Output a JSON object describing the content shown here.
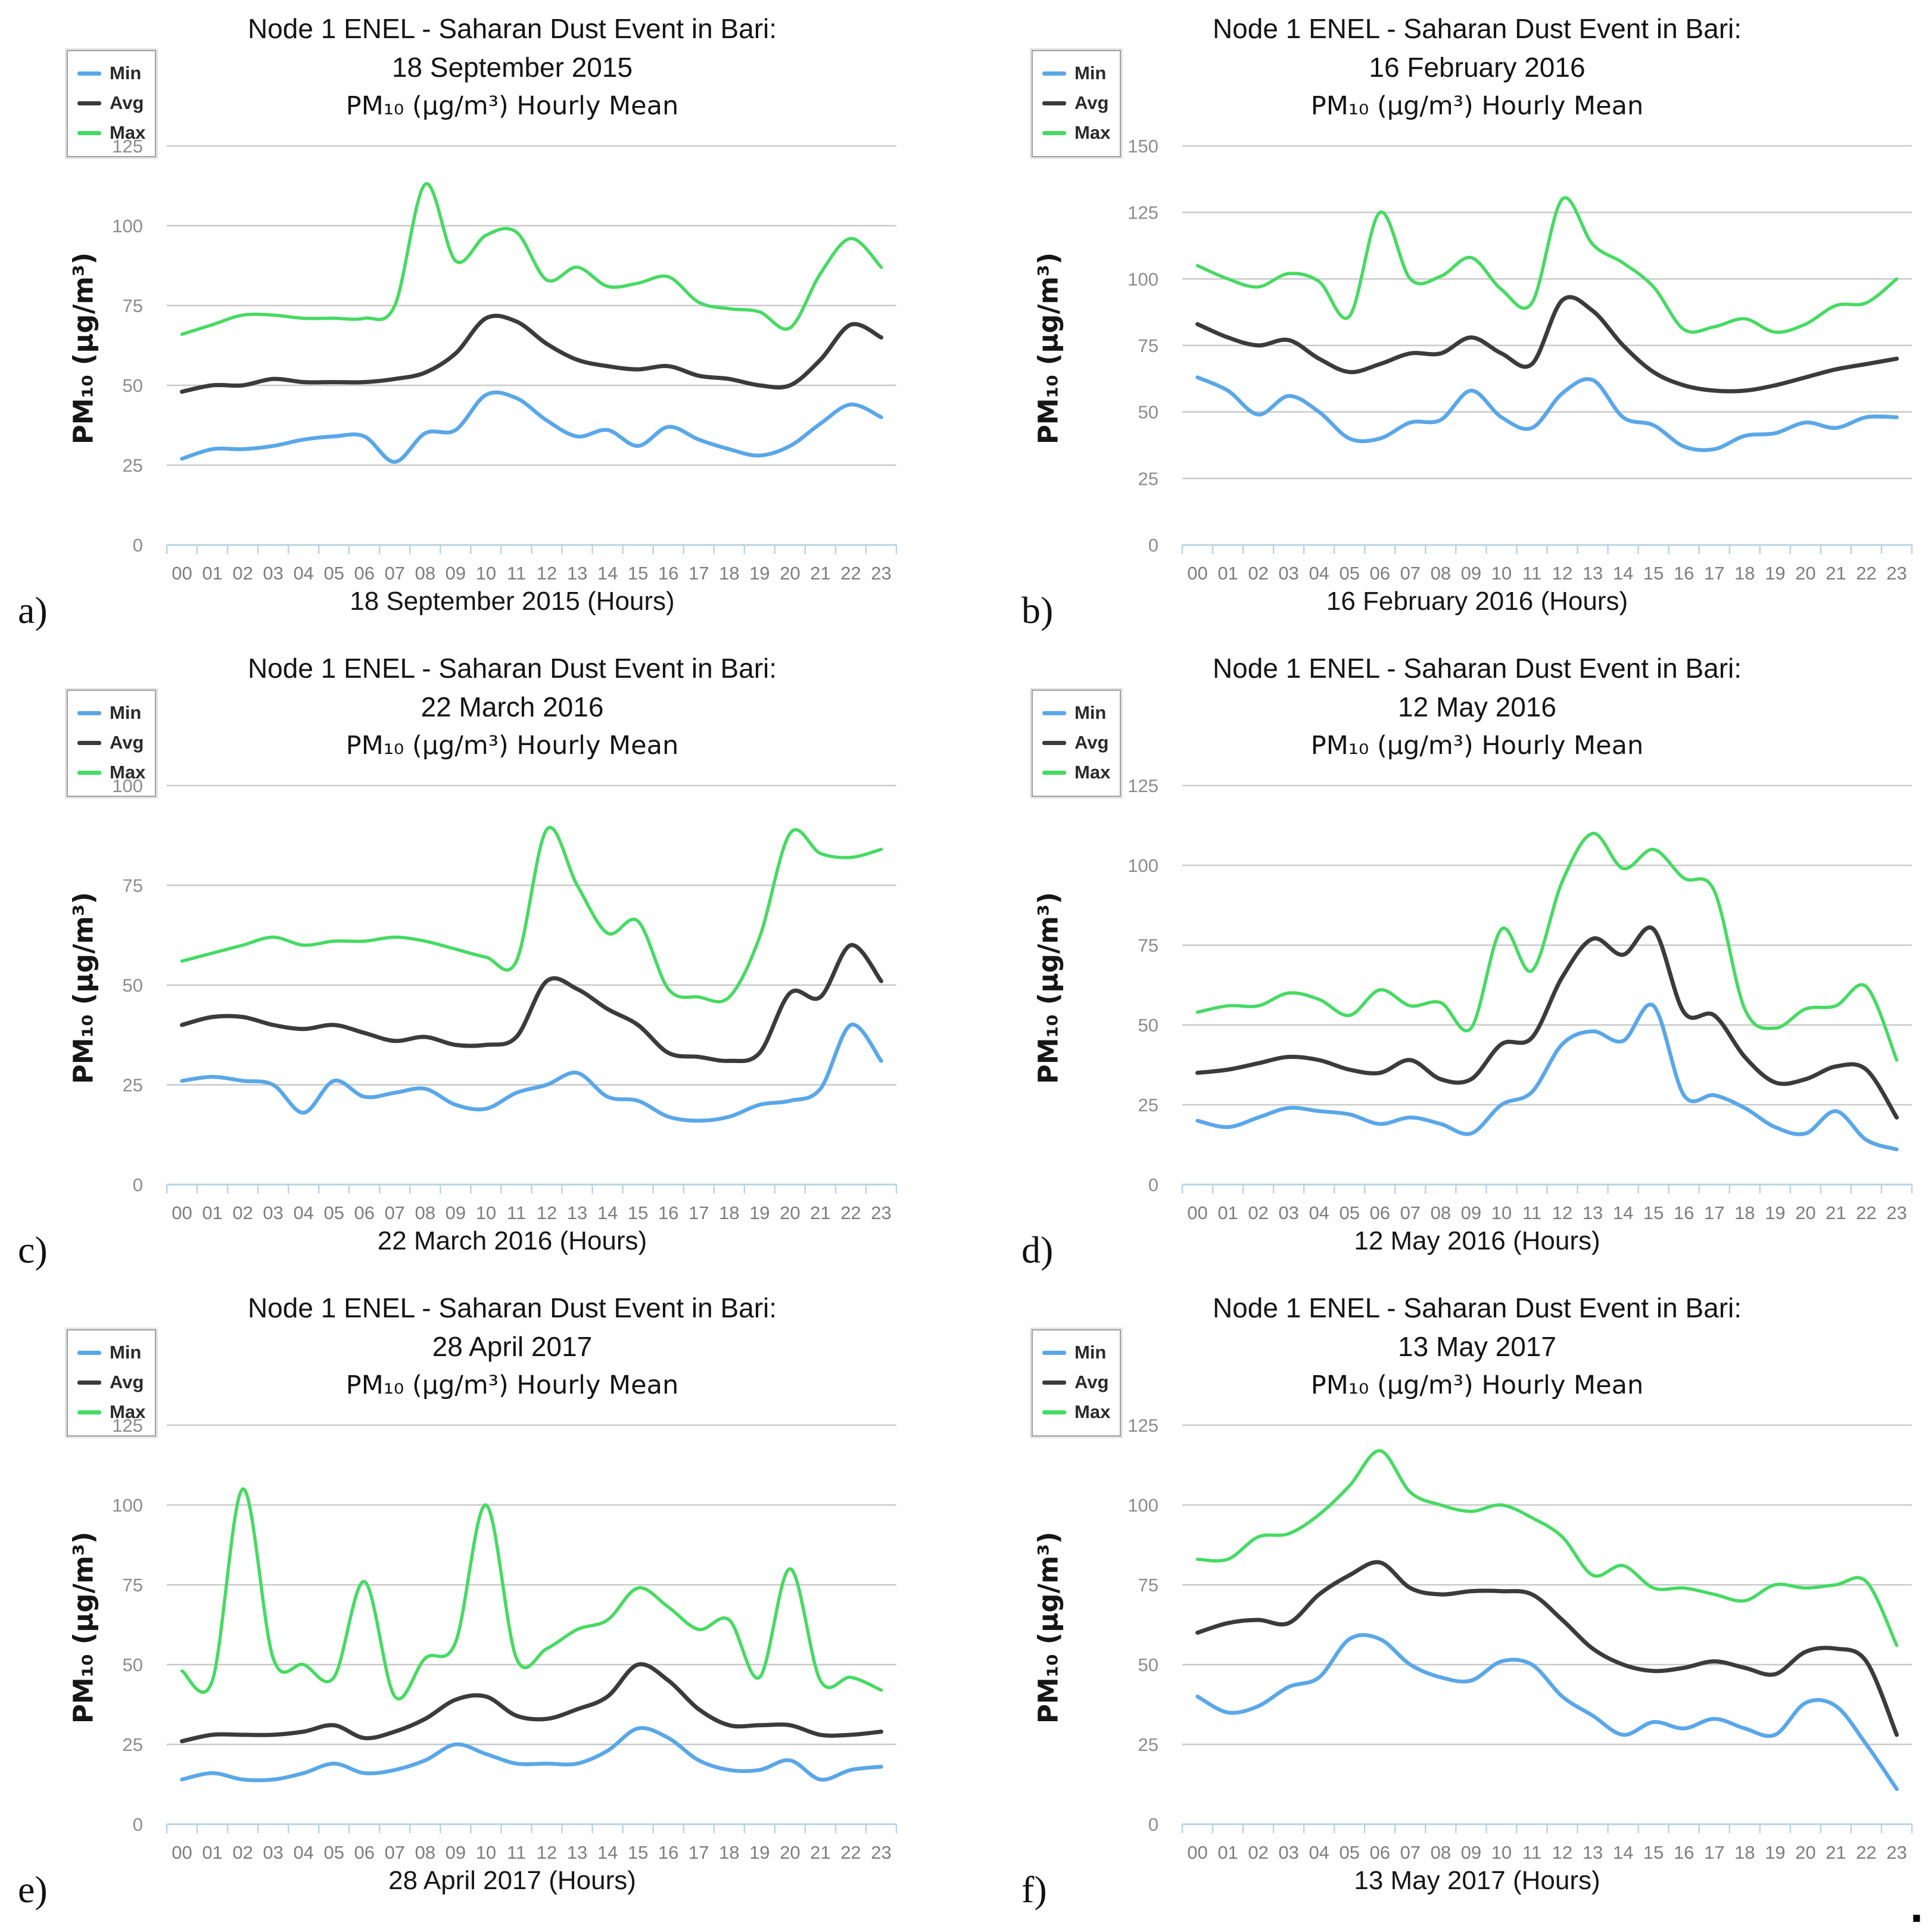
{
  "palette": {
    "min_line": "#5aa7e8",
    "avg_line": "#3b3b3b",
    "max_line": "#46da63",
    "gridline": "#c9c9c9",
    "axis_line": "#b9d3e2",
    "axis_tick_label": "#8c8c8c",
    "title_text": "#141414"
  },
  "footer": {
    "trailing_period": "."
  },
  "chart_data": [
    {
      "type": "line",
      "panel_label": "a)",
      "title": {
        "line1": "Node 1 ENEL - Saharan Dust Event in Bari:",
        "line2": "18 September 2015",
        "line3": "PM₁₀ (µg/m³) Hourly Mean"
      },
      "ylabel": "PM₁₀ (µg/m³)",
      "xlabel": "18 September 2015 (Hours)",
      "ylim": [
        0,
        125
      ],
      "yticks": [
        0,
        25,
        50,
        75,
        100,
        125
      ],
      "grid": true,
      "legend_position": "top-left",
      "x_tick_labels": [
        "00",
        "01",
        "02",
        "03",
        "04",
        "05",
        "06",
        "07",
        "08",
        "09",
        "10",
        "11",
        "12",
        "13",
        "14",
        "15",
        "16",
        "17",
        "18",
        "19",
        "20",
        "21",
        "22",
        "23"
      ],
      "series": [
        {
          "name": "Min",
          "color": "#5aa7e8",
          "values": [
            27,
            30,
            30,
            31,
            33,
            34,
            34,
            26,
            35,
            36,
            47,
            46,
            39,
            34,
            36,
            31,
            37,
            33,
            30,
            28,
            31,
            38,
            44,
            40
          ]
        },
        {
          "name": "Avg",
          "color": "#3b3b3b",
          "values": [
            48,
            50,
            50,
            52,
            51,
            51,
            51,
            52,
            54,
            60,
            71,
            70,
            63,
            58,
            56,
            55,
            56,
            53,
            52,
            50,
            50,
            58,
            69,
            65
          ]
        },
        {
          "name": "Max",
          "color": "#46da63",
          "values": [
            66,
            69,
            72,
            72,
            71,
            71,
            71,
            75,
            113,
            89,
            97,
            98,
            83,
            87,
            81,
            82,
            84,
            76,
            74,
            73,
            68,
            85,
            96,
            87
          ]
        }
      ]
    },
    {
      "type": "line",
      "panel_label": "b)",
      "title": {
        "line1": "Node 1 ENEL - Saharan Dust Event in Bari:",
        "line2": "16 February 2016",
        "line3": "PM₁₀ (µg/m³) Hourly Mean"
      },
      "ylabel": "PM₁₀ (µg/m³)",
      "xlabel": "16 February 2016 (Hours)",
      "ylim": [
        0,
        150
      ],
      "yticks": [
        0,
        25,
        50,
        75,
        100,
        125,
        150
      ],
      "grid": true,
      "legend_position": "top-left",
      "x_tick_labels": [
        "00",
        "01",
        "02",
        "03",
        "04",
        "05",
        "06",
        "07",
        "08",
        "09",
        "10",
        "11",
        "12",
        "13",
        "14",
        "15",
        "16",
        "17",
        "18",
        "19",
        "20",
        "21",
        "22",
        "23"
      ],
      "series": [
        {
          "name": "Min",
          "color": "#5aa7e8",
          "values": [
            63,
            58,
            49,
            56,
            50,
            40,
            40,
            46,
            47,
            58,
            48,
            44,
            57,
            62,
            48,
            45,
            37,
            36,
            41,
            42,
            46,
            44,
            48,
            48
          ]
        },
        {
          "name": "Avg",
          "color": "#3b3b3b",
          "values": [
            83,
            78,
            75,
            77,
            70,
            65,
            68,
            72,
            72,
            78,
            72,
            68,
            92,
            88,
            75,
            65,
            60,
            58,
            58,
            60,
            63,
            66,
            68,
            70
          ]
        },
        {
          "name": "Max",
          "color": "#46da63",
          "values": [
            105,
            100,
            97,
            102,
            99,
            86,
            125,
            100,
            101,
            108,
            96,
            91,
            130,
            113,
            106,
            97,
            81,
            82,
            85,
            80,
            83,
            90,
            91,
            100
          ]
        }
      ]
    },
    {
      "type": "line",
      "panel_label": "c)",
      "title": {
        "line1": "Node 1 ENEL - Saharan Dust Event in Bari:",
        "line2": "22 March 2016",
        "line3": "PM₁₀ (µg/m³) Hourly Mean"
      },
      "ylabel": "PM₁₀ (µg/m³)",
      "xlabel": "22 March 2016 (Hours)",
      "ylim": [
        0,
        100
      ],
      "yticks": [
        0,
        25,
        50,
        75,
        100
      ],
      "grid": true,
      "legend_position": "top-left",
      "x_tick_labels": [
        "00",
        "01",
        "02",
        "03",
        "04",
        "05",
        "06",
        "07",
        "08",
        "09",
        "10",
        "11",
        "12",
        "13",
        "14",
        "15",
        "16",
        "17",
        "18",
        "19",
        "20",
        "21",
        "22",
        "23"
      ],
      "series": [
        {
          "name": "Min",
          "color": "#5aa7e8",
          "values": [
            26,
            27,
            26,
            25,
            18,
            26,
            22,
            23,
            24,
            20,
            19,
            23,
            25,
            28,
            22,
            21,
            17,
            16,
            17,
            20,
            21,
            24,
            40,
            31
          ]
        },
        {
          "name": "Avg",
          "color": "#3b3b3b",
          "values": [
            40,
            42,
            42,
            40,
            39,
            40,
            38,
            36,
            37,
            35,
            35,
            37,
            51,
            49,
            44,
            40,
            33,
            32,
            31,
            33,
            48,
            47,
            60,
            51
          ]
        },
        {
          "name": "Max",
          "color": "#46da63",
          "values": [
            56,
            58,
            60,
            62,
            60,
            61,
            61,
            62,
            61,
            59,
            57,
            56,
            89,
            75,
            63,
            66,
            49,
            47,
            47,
            62,
            88,
            83,
            82,
            84
          ]
        }
      ]
    },
    {
      "type": "line",
      "panel_label": "d)",
      "title": {
        "line1": "Node 1 ENEL - Saharan Dust Event in Bari:",
        "line2": "12 May 2016",
        "line3": "PM₁₀ (µg/m³) Hourly Mean"
      },
      "ylabel": "PM₁₀ (µg/m³)",
      "xlabel": "12 May 2016 (Hours)",
      "ylim": [
        0,
        125
      ],
      "yticks": [
        0,
        25,
        50,
        75,
        100,
        125
      ],
      "grid": true,
      "legend_position": "top-left",
      "x_tick_labels": [
        "00",
        "01",
        "02",
        "03",
        "04",
        "05",
        "06",
        "07",
        "08",
        "09",
        "10",
        "11",
        "12",
        "13",
        "14",
        "15",
        "16",
        "17",
        "18",
        "19",
        "20",
        "21",
        "22",
        "23"
      ],
      "series": [
        {
          "name": "Min",
          "color": "#5aa7e8",
          "values": [
            20,
            18,
            21,
            24,
            23,
            22,
            19,
            21,
            19,
            16,
            25,
            29,
            44,
            48,
            45,
            56,
            28,
            28,
            24,
            18,
            16,
            23,
            14,
            11
          ]
        },
        {
          "name": "Avg",
          "color": "#3b3b3b",
          "values": [
            35,
            36,
            38,
            40,
            39,
            36,
            35,
            39,
            33,
            33,
            44,
            46,
            65,
            77,
            72,
            80,
            54,
            53,
            40,
            32,
            33,
            37,
            36,
            21
          ]
        },
        {
          "name": "Max",
          "color": "#46da63",
          "values": [
            54,
            56,
            56,
            60,
            58,
            53,
            61,
            56,
            57,
            49,
            80,
            67,
            95,
            110,
            99,
            105,
            96,
            92,
            55,
            49,
            55,
            56,
            62,
            39
          ]
        }
      ]
    },
    {
      "type": "line",
      "panel_label": "e)",
      "title": {
        "line1": "Node 1 ENEL - Saharan Dust Event in Bari:",
        "line2": "28 April 2017",
        "line3": "PM₁₀ (µg/m³) Hourly Mean"
      },
      "ylabel": "PM₁₀ (µg/m³)",
      "xlabel": "28 April 2017 (Hours)",
      "ylim": [
        0,
        125
      ],
      "yticks": [
        0,
        25,
        50,
        75,
        100,
        125
      ],
      "grid": true,
      "legend_position": "top-left",
      "x_tick_labels": [
        "00",
        "01",
        "02",
        "03",
        "04",
        "05",
        "06",
        "07",
        "08",
        "09",
        "10",
        "11",
        "12",
        "13",
        "14",
        "15",
        "16",
        "17",
        "18",
        "19",
        "20",
        "21",
        "22",
        "23"
      ],
      "series": [
        {
          "name": "Min",
          "color": "#5aa7e8",
          "values": [
            14,
            16,
            14,
            14,
            16,
            19,
            16,
            17,
            20,
            25,
            22,
            19,
            19,
            19,
            23,
            30,
            27,
            20,
            17,
            17,
            20,
            14,
            17,
            18
          ]
        },
        {
          "name": "Avg",
          "color": "#3b3b3b",
          "values": [
            26,
            28,
            28,
            28,
            29,
            31,
            27,
            29,
            33,
            39,
            40,
            34,
            33,
            36,
            40,
            50,
            45,
            36,
            31,
            31,
            31,
            28,
            28,
            29
          ]
        },
        {
          "name": "Max",
          "color": "#46da63",
          "values": [
            48,
            45,
            105,
            52,
            50,
            46,
            76,
            40,
            52,
            57,
            100,
            52,
            55,
            61,
            64,
            74,
            68,
            61,
            64,
            46,
            80,
            45,
            46,
            42
          ]
        }
      ]
    },
    {
      "type": "line",
      "panel_label": "f)",
      "title": {
        "line1": "Node 1 ENEL - Saharan Dust Event in Bari:",
        "line2": "13 May 2017",
        "line3": "PM₁₀ (µg/m³) Hourly Mean"
      },
      "ylabel": "PM₁₀ (µg/m³)",
      "xlabel": "13 May 2017 (Hours)",
      "ylim": [
        0,
        125
      ],
      "yticks": [
        0,
        25,
        50,
        75,
        100,
        125
      ],
      "grid": true,
      "legend_position": "top-left",
      "x_tick_labels": [
        "00",
        "01",
        "02",
        "03",
        "04",
        "05",
        "06",
        "07",
        "08",
        "09",
        "10",
        "11",
        "12",
        "13",
        "14",
        "15",
        "16",
        "17",
        "18",
        "19",
        "20",
        "21",
        "22",
        "23"
      ],
      "series": [
        {
          "name": "Min",
          "color": "#5aa7e8",
          "values": [
            40,
            35,
            37,
            43,
            46,
            58,
            58,
            50,
            46,
            45,
            51,
            50,
            40,
            34,
            28,
            32,
            30,
            33,
            30,
            28,
            38,
            37,
            25,
            11
          ]
        },
        {
          "name": "Avg",
          "color": "#3b3b3b",
          "values": [
            60,
            63,
            64,
            63,
            72,
            78,
            82,
            74,
            72,
            73,
            73,
            72,
            64,
            55,
            50,
            48,
            49,
            51,
            49,
            47,
            54,
            55,
            51,
            28
          ]
        },
        {
          "name": "Max",
          "color": "#46da63",
          "values": [
            83,
            83,
            90,
            91,
            97,
            106,
            117,
            104,
            100,
            98,
            100,
            96,
            90,
            78,
            81,
            74,
            74,
            72,
            70,
            75,
            74,
            75,
            76,
            56
          ]
        }
      ]
    }
  ]
}
